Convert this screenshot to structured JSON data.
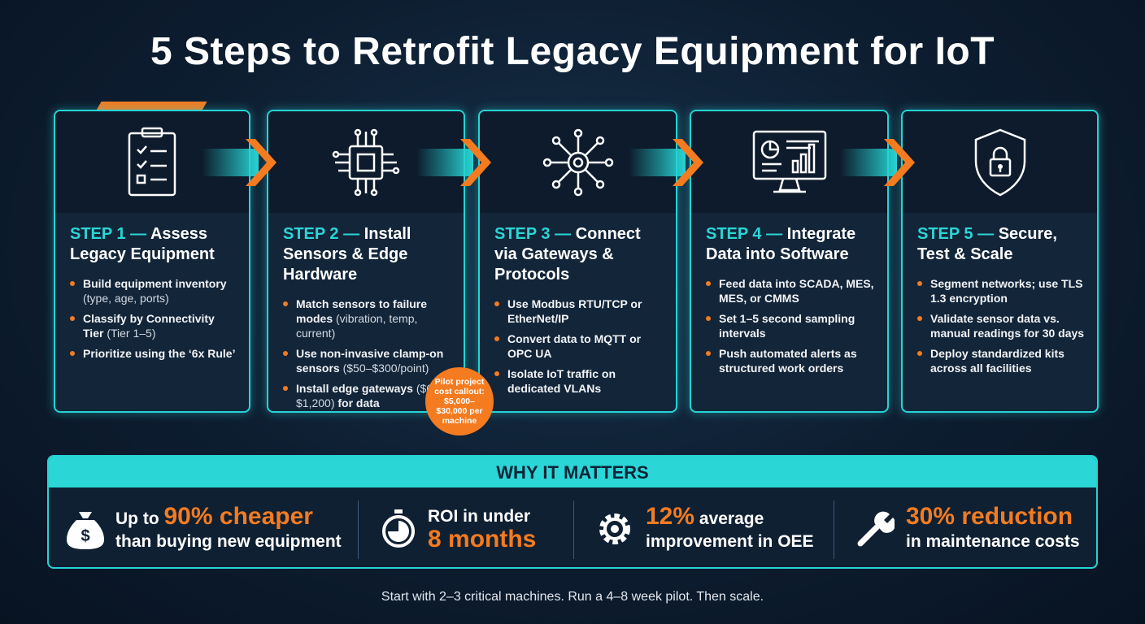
{
  "title": "5 Steps to Retrofit Legacy Equipment for IoT",
  "steps": [
    {
      "label": "STEP 1 —",
      "title": "Assess Legacy Equipment",
      "bullets": [
        [
          "Build equipment inventory",
          "(type, age, ports)"
        ],
        [
          "Classify by Connectivity Tier",
          "(Tier 1–5)"
        ],
        [
          "Prioritize using the ‘6x Rule’"
        ]
      ]
    },
    {
      "label": "STEP 2 —",
      "title": "Install Sensors & Edge Hardware",
      "bullets": [
        [
          "Match sensors to failure modes",
          "(vibration, temp, current)"
        ],
        [
          "Use non-invasive clamp-on sensors",
          "($50–$300/point)"
        ],
        [
          "Install edge gateways",
          "($600–$1,200)",
          "for data normalization"
        ]
      ]
    },
    {
      "label": "STEP 3 —",
      "title": "Connect via Gateways & Protocols",
      "bullets": [
        [
          "Use Modbus RTU/TCP or EtherNet/IP"
        ],
        [
          "Convert data to MQTT or OPC UA"
        ],
        [
          "Isolate IoT traffic on dedicated VLANs"
        ]
      ]
    },
    {
      "label": "STEP 4 —",
      "title": "Integrate Data into Software",
      "bullets": [
        [
          "Feed data into SCADA, MES, MES, or CMMS"
        ],
        [
          "Set 1–5 second sampling intervals"
        ],
        [
          "Push automated alerts as structured work orders"
        ]
      ]
    },
    {
      "label": "STEP 5 —",
      "title": "Secure, Test & Scale",
      "bullets": [
        [
          "Segment networks; use TLS 1.3 encryption"
        ],
        [
          "Validate sensor data vs. manual readings for 30 days"
        ],
        [
          "Deploy standardized kits across all facilities"
        ]
      ]
    }
  ],
  "callout": "Pilot project cost callout: $5,000–$30,000 per machine",
  "matters": {
    "title": "WHY IT MATTERS",
    "items": [
      {
        "lead": "Up to",
        "highlight": "90% cheaper",
        "text": "than buying new equipment"
      },
      {
        "lead": "ROI in under",
        "highlight": "8 months"
      },
      {
        "highlight": "12%",
        "lead": "average",
        "text": "improvement in OEE"
      },
      {
        "highlight": "30% reduction",
        "text": "in maintenance costs"
      }
    ]
  },
  "footer": "Start with 2–3 critical machines. Run a 4–8 week pilot. Then scale."
}
